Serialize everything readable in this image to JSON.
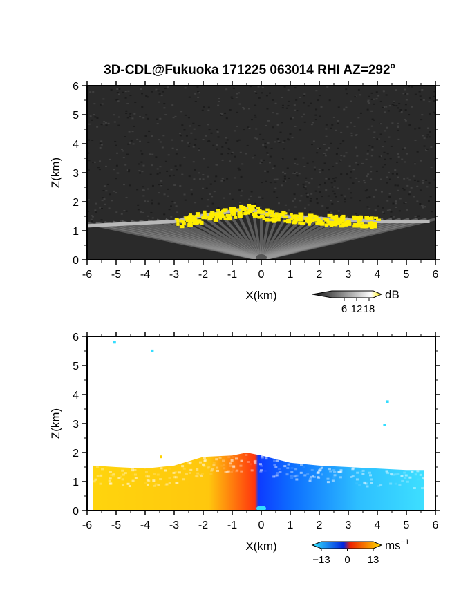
{
  "title": "3D-CDL@Fukuoka 171225 063014 RHI AZ=292",
  "title_sup": "o",
  "chart_data": [
    {
      "type": "heatmap",
      "name": "backscatter",
      "xlabel": "X(km)",
      "ylabel": "Z(km)",
      "xlim": [
        -6,
        6
      ],
      "ylim": [
        0,
        6
      ],
      "xticks": [
        "-6",
        "-5",
        "-4",
        "-3",
        "-2",
        "-1",
        "0",
        "1",
        "2",
        "3",
        "4",
        "5",
        "6"
      ],
      "yticks": [
        "0",
        "1",
        "2",
        "3",
        "4",
        "5",
        "6"
      ],
      "colorbar": {
        "unit": "dB",
        "ticks": [
          "6",
          "12",
          "18"
        ],
        "min": 0,
        "max": 20,
        "colors": [
          "#101010",
          "#ffffff",
          "#ffee00"
        ]
      },
      "boundary_layer_top_km": [
        [
          -6.0,
          1.25
        ],
        [
          -5.0,
          1.3
        ],
        [
          -4.0,
          1.35
        ],
        [
          -3.0,
          1.4
        ],
        [
          -2.0,
          1.6
        ],
        [
          -1.0,
          1.75
        ],
        [
          -0.5,
          1.85
        ],
        [
          0.0,
          1.7
        ],
        [
          1.0,
          1.55
        ],
        [
          2.0,
          1.5
        ],
        [
          3.0,
          1.45
        ],
        [
          4.0,
          1.4
        ],
        [
          5.0,
          1.4
        ],
        [
          5.8,
          1.4
        ]
      ],
      "aerosol_layer_band_km": [
        -3.0,
        4.0
      ],
      "colors": {
        "background": "#2a2a2a",
        "noise_dark": "#1c1c1c",
        "noise_light": "#3f3f3f",
        "aerosol": "#ffee00",
        "boundary": "#b8b8b8"
      }
    },
    {
      "type": "heatmap",
      "name": "radial_velocity",
      "xlabel": "X(km)",
      "ylabel": "Z(km)",
      "xlim": [
        -6,
        6
      ],
      "ylim": [
        0,
        6
      ],
      "xticks": [
        "-6",
        "-5",
        "-4",
        "-3",
        "-2",
        "-1",
        "0",
        "1",
        "2",
        "3",
        "4",
        "5",
        "6"
      ],
      "yticks": [
        "0",
        "1",
        "2",
        "3",
        "4",
        "5",
        "6"
      ],
      "colorbar": {
        "unit": "ms",
        "unit_sup": "−1",
        "ticks": [
          "−13",
          "0",
          "13"
        ],
        "min": -13,
        "max": 13,
        "colors": [
          "#33e6ff",
          "#0022dd",
          "#ee2200",
          "#ffdd00"
        ]
      },
      "field_top_km": [
        [
          -5.8,
          1.55
        ],
        [
          -5.0,
          1.5
        ],
        [
          -4.0,
          1.45
        ],
        [
          -3.0,
          1.55
        ],
        [
          -2.0,
          1.85
        ],
        [
          -1.0,
          1.9
        ],
        [
          -0.5,
          2.0
        ],
        [
          0.0,
          1.9
        ],
        [
          1.0,
          1.65
        ],
        [
          2.0,
          1.55
        ],
        [
          3.0,
          1.5
        ],
        [
          4.0,
          1.45
        ],
        [
          5.0,
          1.4
        ],
        [
          5.6,
          1.4
        ]
      ],
      "isolated_echoes_km": [
        [
          -5.1,
          5.85
        ],
        [
          -3.8,
          5.55
        ],
        [
          4.3,
          3.8
        ],
        [
          4.2,
          3.0
        ],
        [
          -3.5,
          1.9
        ]
      ],
      "colors": {
        "approaching": "#0044ff",
        "receding": "#ff3300",
        "far_receding": "#ffd200",
        "far_approaching": "#33ddff"
      }
    }
  ]
}
